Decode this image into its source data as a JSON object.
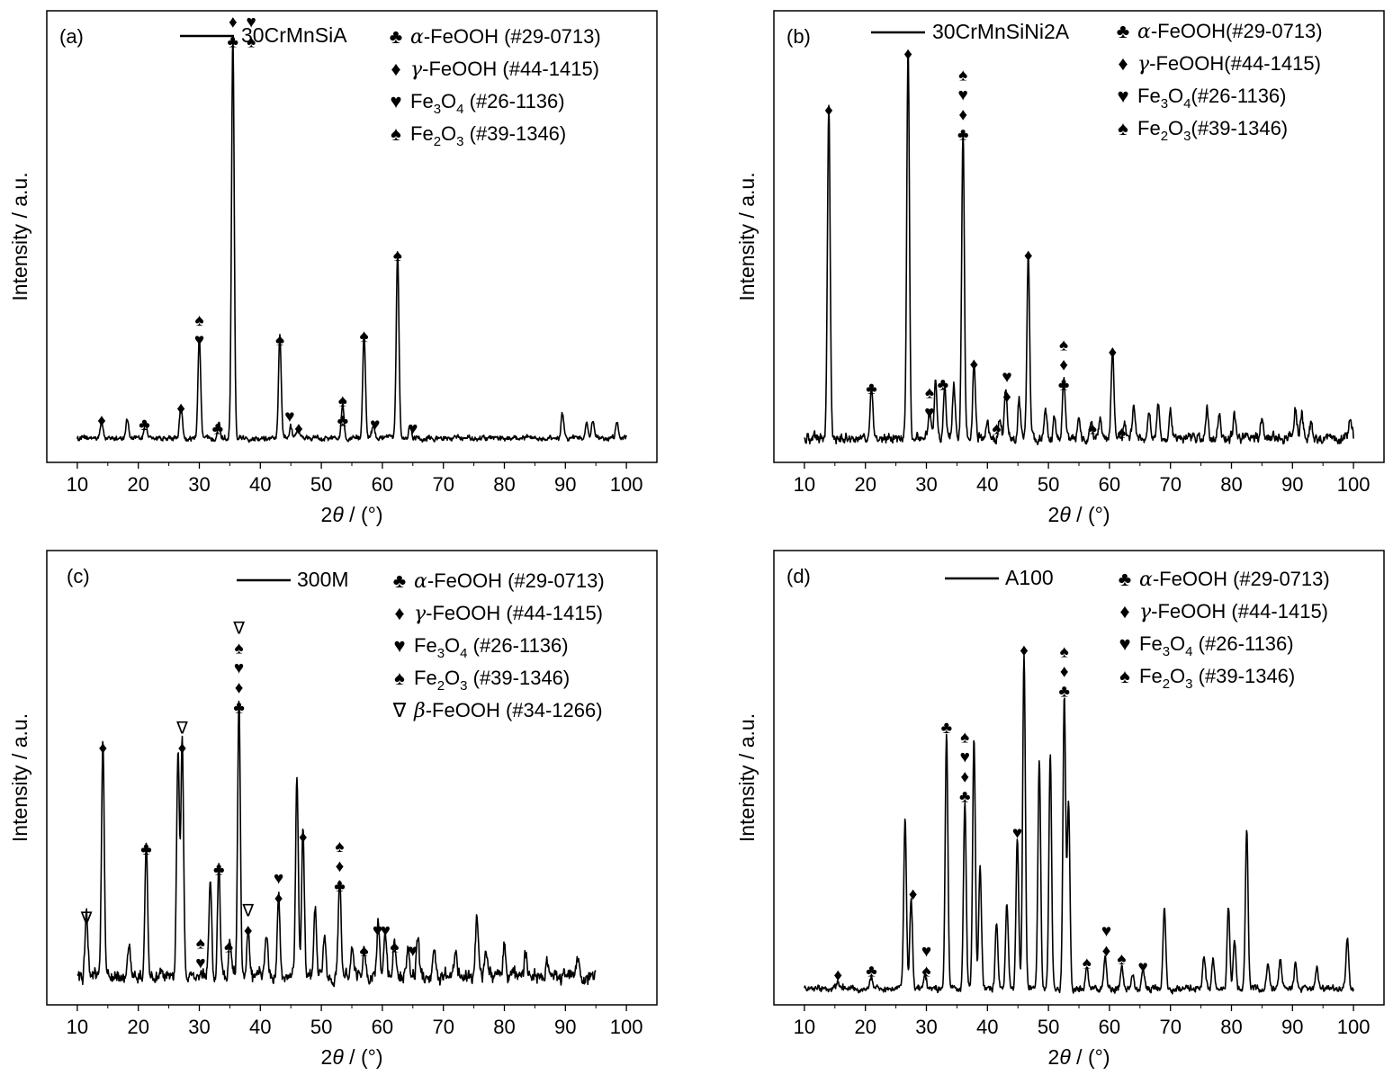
{
  "chart_data": [
    {
      "type": "line",
      "panel": "(a)",
      "series": [
        {
          "name": "30CrMnSiA"
        }
      ],
      "xlabel": {
        "pre": "2",
        "theta": "θ",
        "post": " / (°)"
      },
      "ylabel": "Intensity / a.u.",
      "xlim": [
        5,
        105
      ],
      "xticks": [
        10,
        20,
        30,
        40,
        50,
        60,
        70,
        80,
        90,
        100
      ],
      "trace_range": [
        10,
        100
      ],
      "baseline": 0.06,
      "noise": 0.008,
      "ylim": [
        0,
        1.12
      ],
      "peaks": [
        [
          14,
          0.04
        ],
        [
          18.2,
          0.05
        ],
        [
          21.2,
          0.04
        ],
        [
          27,
          0.08
        ],
        [
          30,
          0.25
        ],
        [
          33.2,
          0.04
        ],
        [
          35.5,
          1.0
        ],
        [
          43.2,
          0.25
        ],
        [
          45,
          0.03
        ],
        [
          46.2,
          0.02
        ],
        [
          53.5,
          0.09
        ],
        [
          57,
          0.26
        ],
        [
          58.5,
          0.03
        ],
        [
          62.5,
          0.46
        ],
        [
          64.5,
          0.03
        ],
        [
          89.5,
          0.06
        ],
        [
          93.5,
          0.04
        ],
        [
          94.5,
          0.04
        ],
        [
          98.5,
          0.04
        ]
      ],
      "legend": [
        {
          "symbol": "♣",
          "greek": "α",
          "text": "-FeOOH (#29-0713)"
        },
        {
          "symbol": "♦",
          "greek": "γ",
          "text": "-FeOOH (#44-1415)"
        },
        {
          "symbol": "♥",
          "pre": "Fe",
          "sub1": "3",
          "mid": "O",
          "sub2": "4",
          "text": " (#26-1136)"
        },
        {
          "symbol": "♠",
          "pre": "Fe",
          "sub1": "2",
          "mid": "O",
          "sub2": "3",
          "text": " (#39-1346)"
        }
      ],
      "annotations": [
        {
          "x": 14,
          "y": 0.09,
          "symbols": [
            "♦"
          ]
        },
        {
          "x": 21,
          "y": 0.08,
          "symbols": [
            "♣"
          ]
        },
        {
          "x": 27,
          "y": 0.12,
          "symbols": [
            "♦"
          ]
        },
        {
          "x": 30,
          "y": 0.29,
          "symbols": [
            "♥",
            "♠"
          ]
        },
        {
          "x": 33,
          "y": 0.07,
          "symbols": [
            "♣"
          ]
        },
        {
          "x": 35.5,
          "y": 1.03,
          "symbols": [
            "♣",
            "♦"
          ]
        },
        {
          "x": 38.5,
          "y": 1.03,
          "symbols": [
            "♠",
            "♥"
          ]
        },
        {
          "x": 43.2,
          "y": 0.29,
          "symbols": [
            "♠"
          ]
        },
        {
          "x": 44.8,
          "y": 0.1,
          "symbols": [
            "♥"
          ]
        },
        {
          "x": 46.3,
          "y": 0.07,
          "symbols": [
            "♦"
          ]
        },
        {
          "x": 53.5,
          "y": 0.09,
          "symbols": [
            "♣",
            "♠"
          ]
        },
        {
          "x": 57,
          "y": 0.3,
          "symbols": [
            "♠"
          ]
        },
        {
          "x": 58.8,
          "y": 0.08,
          "symbols": [
            "♥"
          ]
        },
        {
          "x": 62.5,
          "y": 0.5,
          "symbols": [
            "♠"
          ]
        },
        {
          "x": 65,
          "y": 0.07,
          "symbols": [
            "♥"
          ]
        }
      ]
    },
    {
      "type": "line",
      "panel": "(b)",
      "series": [
        {
          "name": "30CrMnSiNi2A"
        }
      ],
      "xlabel": {
        "pre": "2",
        "theta": "θ",
        "post": " / (°)"
      },
      "ylabel": "Intensity / a.u.",
      "xlim": [
        5,
        105
      ],
      "xticks": [
        10,
        20,
        30,
        40,
        50,
        60,
        70,
        80,
        90,
        100
      ],
      "trace_range": [
        10,
        100
      ],
      "baseline": 0.06,
      "noise": 0.015,
      "ylim": [
        0,
        1.12
      ],
      "peaks": [
        [
          14,
          0.82
        ],
        [
          21,
          0.13
        ],
        [
          27,
          0.96
        ],
        [
          30.5,
          0.08
        ],
        [
          31.5,
          0.15
        ],
        [
          33,
          0.13
        ],
        [
          34.5,
          0.13
        ],
        [
          36,
          0.76
        ],
        [
          37.8,
          0.19
        ],
        [
          40,
          0.04
        ],
        [
          42,
          0.05
        ],
        [
          43,
          0.12
        ],
        [
          45.2,
          0.09
        ],
        [
          46.7,
          0.46
        ],
        [
          49.5,
          0.07
        ],
        [
          51,
          0.05
        ],
        [
          52.5,
          0.15
        ],
        [
          55,
          0.05
        ],
        [
          57,
          0.04
        ],
        [
          58.5,
          0.05
        ],
        [
          60.5,
          0.22
        ],
        [
          62.5,
          0.05
        ],
        [
          64,
          0.08
        ],
        [
          66.5,
          0.06
        ],
        [
          68,
          0.09
        ],
        [
          70,
          0.07
        ],
        [
          76,
          0.08
        ],
        [
          78,
          0.06
        ],
        [
          80.5,
          0.06
        ],
        [
          85,
          0.05
        ],
        [
          90.5,
          0.07
        ],
        [
          91.5,
          0.06
        ],
        [
          93,
          0.04
        ],
        [
          99.5,
          0.05
        ]
      ],
      "legend": [
        {
          "symbol": "♣",
          "greek": "α",
          "text": "-FeOOH(#29-0713)"
        },
        {
          "symbol": "♦",
          "greek": "γ",
          "text": "-FeOOH(#44-1415)"
        },
        {
          "symbol": "♥",
          "pre": "Fe",
          "sub1": "3",
          "mid": "O",
          "sub2": "4",
          "text": "(#26-1136)"
        },
        {
          "symbol": "♠",
          "pre": "Fe",
          "sub1": "2",
          "mid": "O",
          "sub2": "3",
          "text": "(#39-1346)"
        }
      ],
      "annotations": [
        {
          "x": 14,
          "y": 0.86,
          "symbols": [
            "♦"
          ]
        },
        {
          "x": 21,
          "y": 0.17,
          "symbols": [
            "♣"
          ]
        },
        {
          "x": 27,
          "y": 1.0,
          "symbols": [
            "♦"
          ]
        },
        {
          "x": 30.5,
          "y": 0.11,
          "symbols": [
            "♥",
            "♠"
          ]
        },
        {
          "x": 32.7,
          "y": 0.18,
          "symbols": [
            "♣"
          ]
        },
        {
          "x": 36,
          "y": 0.8,
          "symbols": [
            "♣",
            "♦",
            "♥",
            "♠"
          ]
        },
        {
          "x": 37.8,
          "y": 0.23,
          "symbols": [
            "♦"
          ]
        },
        {
          "x": 41.5,
          "y": 0.07,
          "symbols": [
            "♠"
          ]
        },
        {
          "x": 43.2,
          "y": 0.15,
          "symbols": [
            "♦",
            "♥"
          ]
        },
        {
          "x": 46.7,
          "y": 0.5,
          "symbols": [
            "♦"
          ]
        },
        {
          "x": 52.5,
          "y": 0.18,
          "symbols": [
            "♣",
            "♦",
            "♠"
          ]
        },
        {
          "x": 57.2,
          "y": 0.07,
          "symbols": [
            "♠"
          ]
        },
        {
          "x": 60.5,
          "y": 0.26,
          "symbols": [
            "♦"
          ]
        },
        {
          "x": 62,
          "y": 0.06,
          "symbols": [
            "♠"
          ]
        }
      ]
    },
    {
      "type": "line",
      "panel": "(c)",
      "series": [
        {
          "name": "300M"
        }
      ],
      "xlabel": {
        "pre": "2",
        "theta": "θ",
        "post": " / (°)"
      },
      "ylabel": "Intensity / a.u.",
      "xlim": [
        5,
        105
      ],
      "xticks": [
        10,
        20,
        30,
        40,
        50,
        60,
        70,
        80,
        90,
        100
      ],
      "trace_range": [
        10,
        95
      ],
      "baseline": 0.07,
      "noise": 0.02,
      "ylim": [
        0,
        1.12
      ],
      "peaks": [
        [
          11.5,
          0.16
        ],
        [
          14.2,
          0.58
        ],
        [
          18.5,
          0.07
        ],
        [
          21.3,
          0.33
        ],
        [
          26.5,
          0.56
        ],
        [
          27.2,
          0.58
        ],
        [
          31.8,
          0.22
        ],
        [
          33.2,
          0.28
        ],
        [
          35,
          0.09
        ],
        [
          36.5,
          0.68
        ],
        [
          38,
          0.13
        ],
        [
          41,
          0.1
        ],
        [
          43,
          0.21
        ],
        [
          46,
          0.49
        ],
        [
          47,
          0.36
        ],
        [
          49,
          0.17
        ],
        [
          50.5,
          0.1
        ],
        [
          53,
          0.24
        ],
        [
          55,
          0.07
        ],
        [
          57,
          0.08
        ],
        [
          59.3,
          0.13
        ],
        [
          60.5,
          0.11
        ],
        [
          62,
          0.09
        ],
        [
          64.2,
          0.06
        ],
        [
          65.8,
          0.1
        ],
        [
          68.5,
          0.07
        ],
        [
          72,
          0.06
        ],
        [
          75.5,
          0.15
        ],
        [
          77,
          0.06
        ],
        [
          80,
          0.08
        ],
        [
          83.5,
          0.05
        ],
        [
          87,
          0.04
        ],
        [
          92,
          0.04
        ]
      ],
      "legend": [
        {
          "symbol": "♣",
          "greek": "α",
          "text": "-FeOOH (#29-0713)"
        },
        {
          "symbol": "♦",
          "greek": "γ",
          "text": "-FeOOH (#44-1415)"
        },
        {
          "symbol": "♥",
          "pre": "Fe",
          "sub1": "3",
          "mid": "O",
          "sub2": "4",
          "text": " (#26-1136)"
        },
        {
          "symbol": "♠",
          "pre": "Fe",
          "sub1": "2",
          "mid": "O",
          "sub2": "3",
          "text": " (#39-1346)"
        },
        {
          "symbol": "∇",
          "greek": "β",
          "text": "-FeOOH (#34-1266)"
        }
      ],
      "annotations": [
        {
          "x": 11.5,
          "y": 0.2,
          "symbols": [
            "∇"
          ]
        },
        {
          "x": 14.2,
          "y": 0.62,
          "symbols": [
            "♦"
          ]
        },
        {
          "x": 21.3,
          "y": 0.37,
          "symbols": [
            "♣"
          ]
        },
        {
          "x": 27.2,
          "y": 0.62,
          "symbols": [
            "♦",
            "∇"
          ]
        },
        {
          "x": 30.2,
          "y": 0.09,
          "symbols": [
            "♥",
            "♠"
          ]
        },
        {
          "x": 33.2,
          "y": 0.32,
          "symbols": [
            "♣"
          ]
        },
        {
          "x": 34.8,
          "y": 0.13,
          "symbols": [
            "♠"
          ]
        },
        {
          "x": 36.5,
          "y": 0.72,
          "symbols": [
            "♣",
            "♦",
            "♥",
            "♠",
            "∇"
          ]
        },
        {
          "x": 38,
          "y": 0.17,
          "symbols": [
            "♦",
            "∇"
          ]
        },
        {
          "x": 43,
          "y": 0.25,
          "symbols": [
            "♦",
            "♥"
          ]
        },
        {
          "x": 47,
          "y": 0.4,
          "symbols": [
            "♦"
          ]
        },
        {
          "x": 53,
          "y": 0.28,
          "symbols": [
            "♣",
            "♦",
            "♠"
          ]
        },
        {
          "x": 57,
          "y": 0.12,
          "symbols": [
            "♠"
          ]
        },
        {
          "x": 59.2,
          "y": 0.17,
          "symbols": [
            "♥"
          ]
        },
        {
          "x": 60.5,
          "y": 0.17,
          "symbols": [
            "♥"
          ]
        },
        {
          "x": 62,
          "y": 0.13,
          "symbols": [
            "♠"
          ]
        },
        {
          "x": 65,
          "y": 0.12,
          "symbols": [
            "♥"
          ]
        }
      ]
    },
    {
      "type": "line",
      "panel": "(d)",
      "series": [
        {
          "name": "A100"
        }
      ],
      "xlabel": {
        "pre": "2",
        "theta": "θ",
        "post": " / (°)"
      },
      "ylabel": "Intensity / a.u.",
      "xlim": [
        5,
        105
      ],
      "xticks": [
        10,
        20,
        30,
        40,
        50,
        60,
        70,
        80,
        90,
        100
      ],
      "trace_range": [
        10,
        100
      ],
      "baseline": 0.04,
      "noise": 0.01,
      "ylim": [
        0,
        1.12
      ],
      "peaks": [
        [
          15.5,
          0.02
        ],
        [
          21,
          0.03
        ],
        [
          26.5,
          0.42
        ],
        [
          27.5,
          0.22
        ],
        [
          29.8,
          0.03
        ],
        [
          33.3,
          0.63
        ],
        [
          36.3,
          0.46
        ],
        [
          37.8,
          0.62
        ],
        [
          38.8,
          0.3
        ],
        [
          41.5,
          0.16
        ],
        [
          43.2,
          0.21
        ],
        [
          44.9,
          0.37
        ],
        [
          46,
          0.82
        ],
        [
          48.5,
          0.56
        ],
        [
          50.3,
          0.58
        ],
        [
          52.6,
          0.72
        ],
        [
          53.3,
          0.46
        ],
        [
          56.3,
          0.05
        ],
        [
          59.3,
          0.08
        ],
        [
          62,
          0.06
        ],
        [
          63.8,
          0.04
        ],
        [
          65.5,
          0.05
        ],
        [
          69,
          0.2
        ],
        [
          75.5,
          0.08
        ],
        [
          77,
          0.07
        ],
        [
          79.5,
          0.2
        ],
        [
          80.5,
          0.12
        ],
        [
          82.5,
          0.39
        ],
        [
          86,
          0.06
        ],
        [
          88,
          0.07
        ],
        [
          90.5,
          0.06
        ],
        [
          94,
          0.05
        ],
        [
          99,
          0.12
        ]
      ],
      "legend": [
        {
          "symbol": "♣",
          "greek": "α",
          "text": "-FeOOH (#29-0713)"
        },
        {
          "symbol": "♦",
          "greek": "γ",
          "text": "-FeOOH (#44-1415)"
        },
        {
          "symbol": "♥",
          "pre": "Fe",
          "sub1": "3",
          "mid": "O",
          "sub2": "4",
          "text": " (#26-1136)"
        },
        {
          "symbol": "♠",
          "pre": "Fe",
          "sub1": "2",
          "mid": "O",
          "sub2": "3",
          "text": " (#39-1346)"
        }
      ],
      "annotations": [
        {
          "x": 15.5,
          "y": 0.06,
          "symbols": [
            "♦"
          ]
        },
        {
          "x": 21,
          "y": 0.07,
          "symbols": [
            "♣"
          ]
        },
        {
          "x": 27.8,
          "y": 0.26,
          "symbols": [
            "♦"
          ]
        },
        {
          "x": 30,
          "y": 0.07,
          "symbols": [
            "♠",
            "♥"
          ]
        },
        {
          "x": 33.3,
          "y": 0.67,
          "symbols": [
            "♣"
          ]
        },
        {
          "x": 36.3,
          "y": 0.5,
          "symbols": [
            "♣",
            "♦",
            "♥",
            "♠"
          ]
        },
        {
          "x": 44.9,
          "y": 0.41,
          "symbols": [
            "♥"
          ]
        },
        {
          "x": 46,
          "y": 0.86,
          "symbols": [
            "♦"
          ]
        },
        {
          "x": 52.6,
          "y": 0.76,
          "symbols": [
            "♣",
            "♦",
            "♠"
          ]
        },
        {
          "x": 56.3,
          "y": 0.09,
          "symbols": [
            "♠"
          ]
        },
        {
          "x": 59.5,
          "y": 0.12,
          "symbols": [
            "♦",
            "♥"
          ]
        },
        {
          "x": 62,
          "y": 0.1,
          "symbols": [
            "♠"
          ]
        },
        {
          "x": 65.5,
          "y": 0.08,
          "symbols": [
            "♥"
          ]
        }
      ]
    }
  ]
}
